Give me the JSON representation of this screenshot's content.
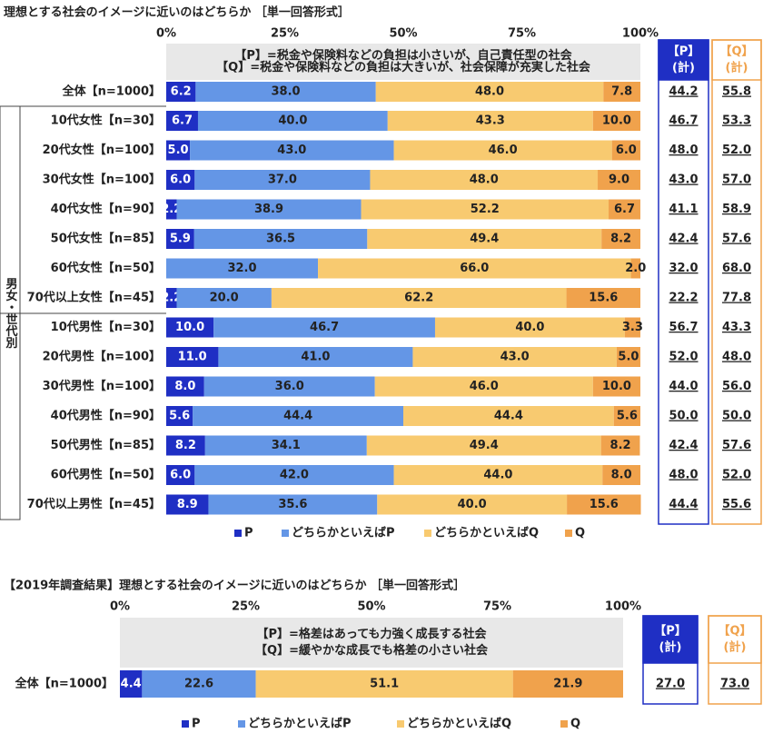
{
  "chart_data": [
    {
      "type": "stacked-bar-horizontal",
      "title": "理想とする社会のイメージに近いのはどちらか ［単一回答形式］",
      "xlim": [
        0,
        100
      ],
      "xticks": [
        {
          "value": 0,
          "label": "0%"
        },
        {
          "value": 25,
          "label": "25%"
        },
        {
          "value": 50,
          "label": "50%"
        },
        {
          "value": 75,
          "label": "75%"
        },
        {
          "value": 100,
          "label": "100%"
        }
      ],
      "header_lines": [
        "【P】=税金や保険料などの負担は小さいが、自己責任型の社会",
        "【Q】=税金や保険料などの負担は大きいが、社会保障が充実した社会"
      ],
      "group_label": "男女・世代別",
      "categories": [
        "全体【n=1000】",
        "10代女性【n=30】",
        "20代女性【n=100】",
        "30代女性【n=100】",
        "40代女性【n=90】",
        "50代女性【n=85】",
        "60代女性【n=50】",
        "70代以上女性【n=45】",
        "10代男性【n=30】",
        "20代男性【n=100】",
        "30代男性【n=100】",
        "40代男性【n=90】",
        "50代男性【n=85】",
        "60代男性【n=50】",
        "70代以上男性【n=45】"
      ],
      "series": [
        {
          "name": "P",
          "color": "#1f2fc4",
          "values": [
            6.2,
            6.7,
            5.0,
            6.0,
            2.2,
            5.9,
            0,
            2.2,
            10.0,
            11.0,
            8.0,
            5.6,
            8.2,
            6.0,
            8.9
          ],
          "value_labels": [
            "6.2",
            "6.7",
            "5.0",
            "6.0",
            "2.2",
            "5.9",
            null,
            "2.2",
            "10.0",
            "11.0",
            "8.0",
            "5.6",
            "8.2",
            "6.0",
            "8.9"
          ]
        },
        {
          "name": "どちらかといえばP",
          "color": "#6496e6",
          "values": [
            38.0,
            40.0,
            43.0,
            37.0,
            38.9,
            36.5,
            32.0,
            20.0,
            46.7,
            41.0,
            36.0,
            44.4,
            34.1,
            42.0,
            35.6
          ],
          "value_labels": [
            "38.0",
            "40.0",
            "43.0",
            "37.0",
            "38.9",
            "36.5",
            "32.0",
            "20.0",
            "46.7",
            "41.0",
            "36.0",
            "44.4",
            "34.1",
            "42.0",
            "35.6"
          ]
        },
        {
          "name": "どちらかといえばQ",
          "color": "#f8ca70",
          "values": [
            48.0,
            43.3,
            46.0,
            48.0,
            52.2,
            49.4,
            66.0,
            62.2,
            40.0,
            43.0,
            46.0,
            44.4,
            49.4,
            44.0,
            40.0
          ],
          "value_labels": [
            "48.0",
            "43.3",
            "46.0",
            "48.0",
            "52.2",
            "49.4",
            "66.0",
            "62.2",
            "40.0",
            "43.0",
            "46.0",
            "44.4",
            "49.4",
            "44.0",
            "40.0"
          ]
        },
        {
          "name": "Q",
          "color": "#f0a24c",
          "values": [
            7.8,
            10.0,
            6.0,
            9.0,
            6.7,
            8.2,
            2.0,
            15.6,
            3.3,
            5.0,
            10.0,
            5.6,
            8.2,
            8.0,
            15.6
          ],
          "value_labels": [
            "7.8",
            "10.0",
            "6.0",
            "9.0",
            "6.7",
            "8.2",
            "2.0",
            "15.6",
            "3.3",
            "5.0",
            "10.0",
            "5.6",
            "8.2",
            "8.0",
            "15.6"
          ]
        }
      ],
      "totals": [
        {
          "name": "【P】",
          "sub": "(計)",
          "color": "#1f2fc4",
          "values": [
            44.2,
            46.7,
            48.0,
            43.0,
            41.1,
            42.4,
            32.0,
            22.2,
            56.7,
            52.0,
            44.0,
            50.0,
            42.4,
            48.0,
            44.4
          ],
          "value_labels": [
            "44.2",
            "46.7",
            "48.0",
            "43.0",
            "41.1",
            "42.4",
            "32.0",
            "22.2",
            "56.7",
            "52.0",
            "44.0",
            "50.0",
            "42.4",
            "48.0",
            "44.4"
          ]
        },
        {
          "name": "【Q】",
          "sub": "(計)",
          "color": "#f0a24c",
          "values": [
            55.8,
            53.3,
            52.0,
            57.0,
            58.9,
            57.6,
            68.0,
            77.8,
            43.3,
            48.0,
            56.0,
            50.0,
            57.6,
            52.0,
            55.6
          ],
          "value_labels": [
            "55.8",
            "53.3",
            "52.0",
            "57.0",
            "58.9",
            "57.6",
            "68.0",
            "77.8",
            "43.3",
            "48.0",
            "56.0",
            "50.0",
            "57.6",
            "52.0",
            "55.6"
          ]
        }
      ]
    },
    {
      "type": "stacked-bar-horizontal",
      "title": "【2019年調査結果】理想とする社会のイメージに近いのはどちらか ［単一回答形式］",
      "xlim": [
        0,
        100
      ],
      "xticks": [
        {
          "value": 0,
          "label": "0%"
        },
        {
          "value": 25,
          "label": "25%"
        },
        {
          "value": 50,
          "label": "50%"
        },
        {
          "value": 75,
          "label": "75%"
        },
        {
          "value": 100,
          "label": "100%"
        }
      ],
      "header_lines": [
        "【P】=格差はあっても力強く成長する社会",
        "【Q】=緩やかな成長でも格差の小さい社会"
      ],
      "categories": [
        "全体【n=1000】"
      ],
      "series": [
        {
          "name": "P",
          "color": "#1f2fc4",
          "values": [
            4.4
          ],
          "value_labels": [
            "4.4"
          ]
        },
        {
          "name": "どちらかといえばP",
          "color": "#6496e6",
          "values": [
            22.6
          ],
          "value_labels": [
            "22.6"
          ]
        },
        {
          "name": "どちらかといえばQ",
          "color": "#f8ca70",
          "values": [
            51.1
          ],
          "value_labels": [
            "51.1"
          ]
        },
        {
          "name": "Q",
          "color": "#f0a24c",
          "values": [
            21.9
          ],
          "value_labels": [
            "21.9"
          ]
        }
      ],
      "totals": [
        {
          "name": "【P】",
          "sub": "(計)",
          "color": "#1f2fc4",
          "values": [
            27.0
          ],
          "value_labels": [
            "27.0"
          ]
        },
        {
          "name": "【Q】",
          "sub": "(計)",
          "color": "#f0a24c",
          "values": [
            73.0
          ],
          "value_labels": [
            "73.0"
          ]
        }
      ]
    }
  ]
}
